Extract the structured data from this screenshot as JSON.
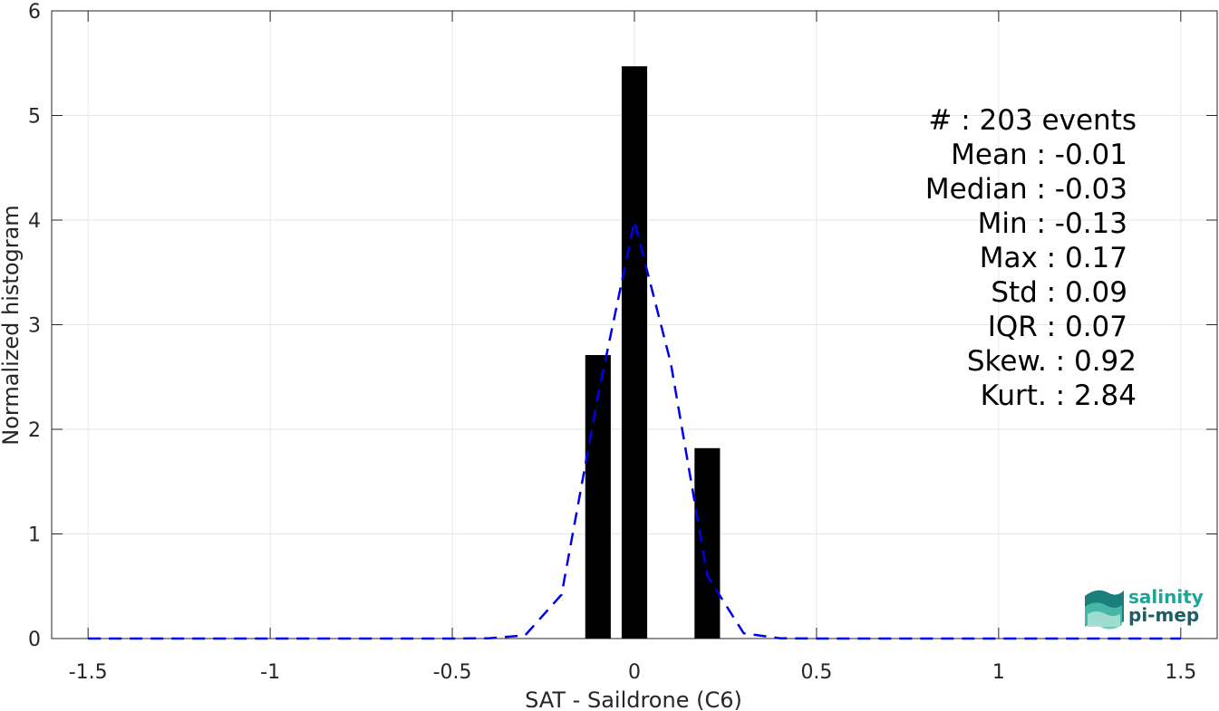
{
  "chart_data": {
    "type": "bar",
    "xlabel": "SAT - Saildrone (C6)",
    "ylabel": "Normalized histogram",
    "xlim": [
      -1.6,
      1.6
    ],
    "ylim": [
      0,
      6
    ],
    "grid": true,
    "x_ticks": [
      -1.5,
      -1,
      -0.5,
      0,
      0.5,
      1,
      1.5
    ],
    "x_tick_labels": [
      "-1.5",
      "-1",
      "-0.5",
      "0",
      "0.5",
      "1",
      "1.5"
    ],
    "y_ticks": [
      0,
      1,
      2,
      3,
      4,
      5,
      6
    ],
    "y_tick_labels": [
      "0",
      "1",
      "2",
      "3",
      "4",
      "5",
      "6"
    ],
    "bar_width": 0.07,
    "bars": [
      {
        "x": -0.1,
        "value": 2.71
      },
      {
        "x": 0.0,
        "value": 5.47
      },
      {
        "x": 0.2,
        "value": 1.82
      }
    ],
    "series": [
      {
        "type": "line",
        "style": "dashed",
        "color": "#0000ee",
        "x": [
          -1.5,
          -1.4,
          -1.3,
          -1.2,
          -1.1,
          -1.0,
          -0.9,
          -0.8,
          -0.7,
          -0.6,
          -0.5,
          -0.4,
          -0.3,
          -0.2,
          -0.1,
          0.0,
          0.1,
          0.2,
          0.3,
          0.4,
          0.5,
          0.6,
          0.7,
          0.8,
          0.9,
          1.0,
          1.1,
          1.2,
          1.3,
          1.4,
          1.5
        ],
        "values": [
          0,
          0,
          0,
          0,
          0,
          0,
          0,
          0,
          0,
          0,
          0,
          0.003,
          0.03,
          0.42,
          2.32,
          3.99,
          2.63,
          0.6,
          0.05,
          0.003,
          0,
          0,
          0,
          0,
          0,
          0,
          0,
          0,
          0,
          0,
          0
        ]
      }
    ],
    "stats": [
      "#  : 203 events",
      "Mean : -0.01",
      "Median : -0.03",
      "Min : -0.13",
      "Max : 0.17",
      "Std : 0.09",
      "IQR : 0.07",
      "Skew. : 0.92",
      "Kurt. : 2.84"
    ]
  },
  "logo": {
    "line1": "salinity",
    "line2": "pi-mep",
    "accent_color": "#1aa79a",
    "dark_color": "#1a5f63"
  }
}
